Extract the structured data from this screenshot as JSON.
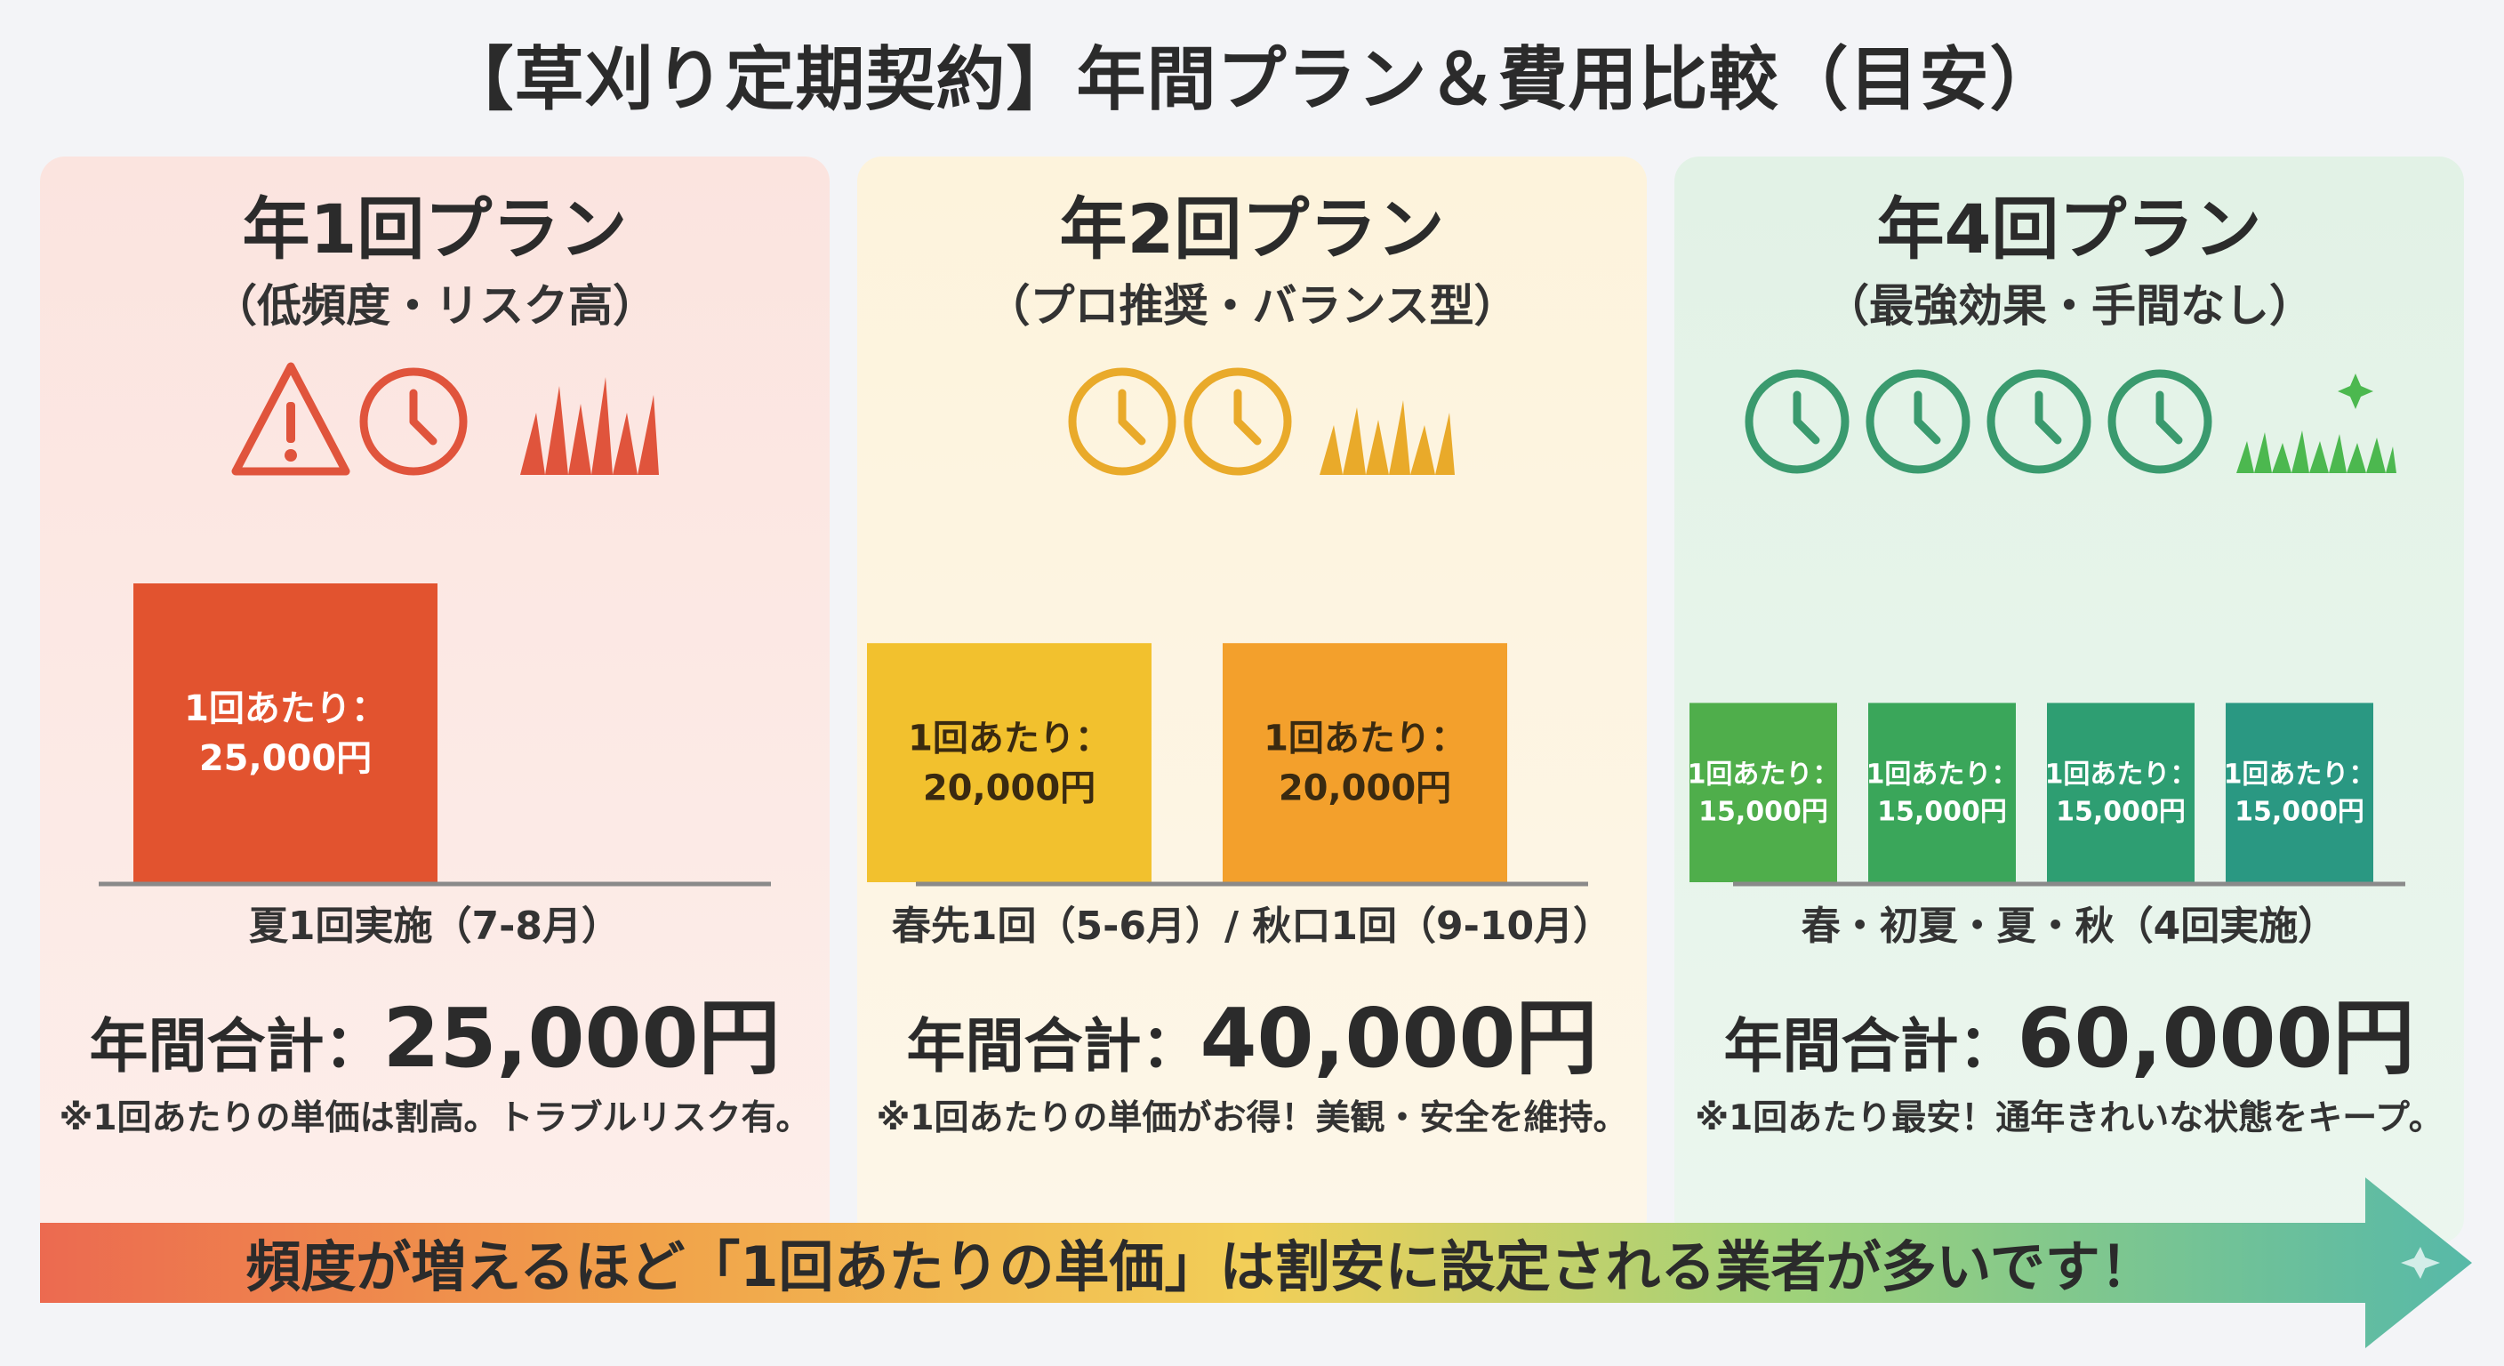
{
  "title": "【草刈り定期契約】年間プラン＆費用比較（目安）",
  "banner": "頻度が増えるほど「1回あたりの単価」は割安に設定される業者が多いです！",
  "colors": {
    "plan1": "#e2532f",
    "plan2_a": "#f2c12e",
    "plan2_b": "#f3a02c",
    "plan3_bars": [
      "#4fae4b",
      "#3aa65a",
      "#2e9e72",
      "#2a9882"
    ],
    "icon1": "#e0543c",
    "icon2": "#e9aa2a",
    "icon3": "#3a9a6e",
    "grass3": "#4cb84f"
  },
  "plans": [
    {
      "name": "年1回プラン",
      "subtitle": "（低頻度・リスク高）",
      "icons": [
        "warning-icon",
        "clock-icon",
        "grass-tall-icon"
      ],
      "schedule": "夏1回実施（7-8月）",
      "total_label": "年間合計：",
      "total_value": "25,000円",
      "note": "※1回あたりの単価は割高。トラブルリスク有。"
    },
    {
      "name": "年2回プラン",
      "subtitle": "（プロ推奨・バランス型）",
      "icons": [
        "clock-icon",
        "clock-icon",
        "grass-medium-icon"
      ],
      "schedule": "春先1回（5-6月）/ 秋口1回（9-10月）",
      "total_label": "年間合計：",
      "total_value": "40,000円",
      "note": "※1回あたりの単価がお得！美観・安全を維持。"
    },
    {
      "name": "年4回プラン",
      "subtitle": "（最強効果・手間なし）",
      "icons": [
        "clock-icon",
        "clock-icon",
        "clock-icon",
        "clock-icon",
        "grass-short-sparkle-icon"
      ],
      "schedule": "春・初夏・夏・秋（4回実施）",
      "total_label": "年間合計：",
      "total_value": "60,000円",
      "note": "※1回あたり最安！通年きれいな状態をキープ。"
    }
  ],
  "chart_data": [
    {
      "type": "bar",
      "categories": [
        "夏"
      ],
      "values": [
        25000
      ],
      "data_labels": [
        "1回あたり：\n25,000円"
      ],
      "ylim": [
        0,
        25000
      ]
    },
    {
      "type": "bar",
      "categories": [
        "春先",
        "秋口"
      ],
      "values": [
        20000,
        20000
      ],
      "data_labels": [
        "1回あたり：\n20,000円",
        "1回あたり：\n20,000円"
      ],
      "ylim": [
        0,
        25000
      ]
    },
    {
      "type": "bar",
      "categories": [
        "春",
        "初夏",
        "夏",
        "秋"
      ],
      "values": [
        15000,
        15000,
        15000,
        15000
      ],
      "data_labels": [
        "1回あたり：\n15,000円",
        "1回あたり：\n15,000円",
        "1回あたり：\n15,000円",
        "1回あたり：\n15,000円"
      ],
      "ylim": [
        0,
        25000
      ]
    }
  ]
}
